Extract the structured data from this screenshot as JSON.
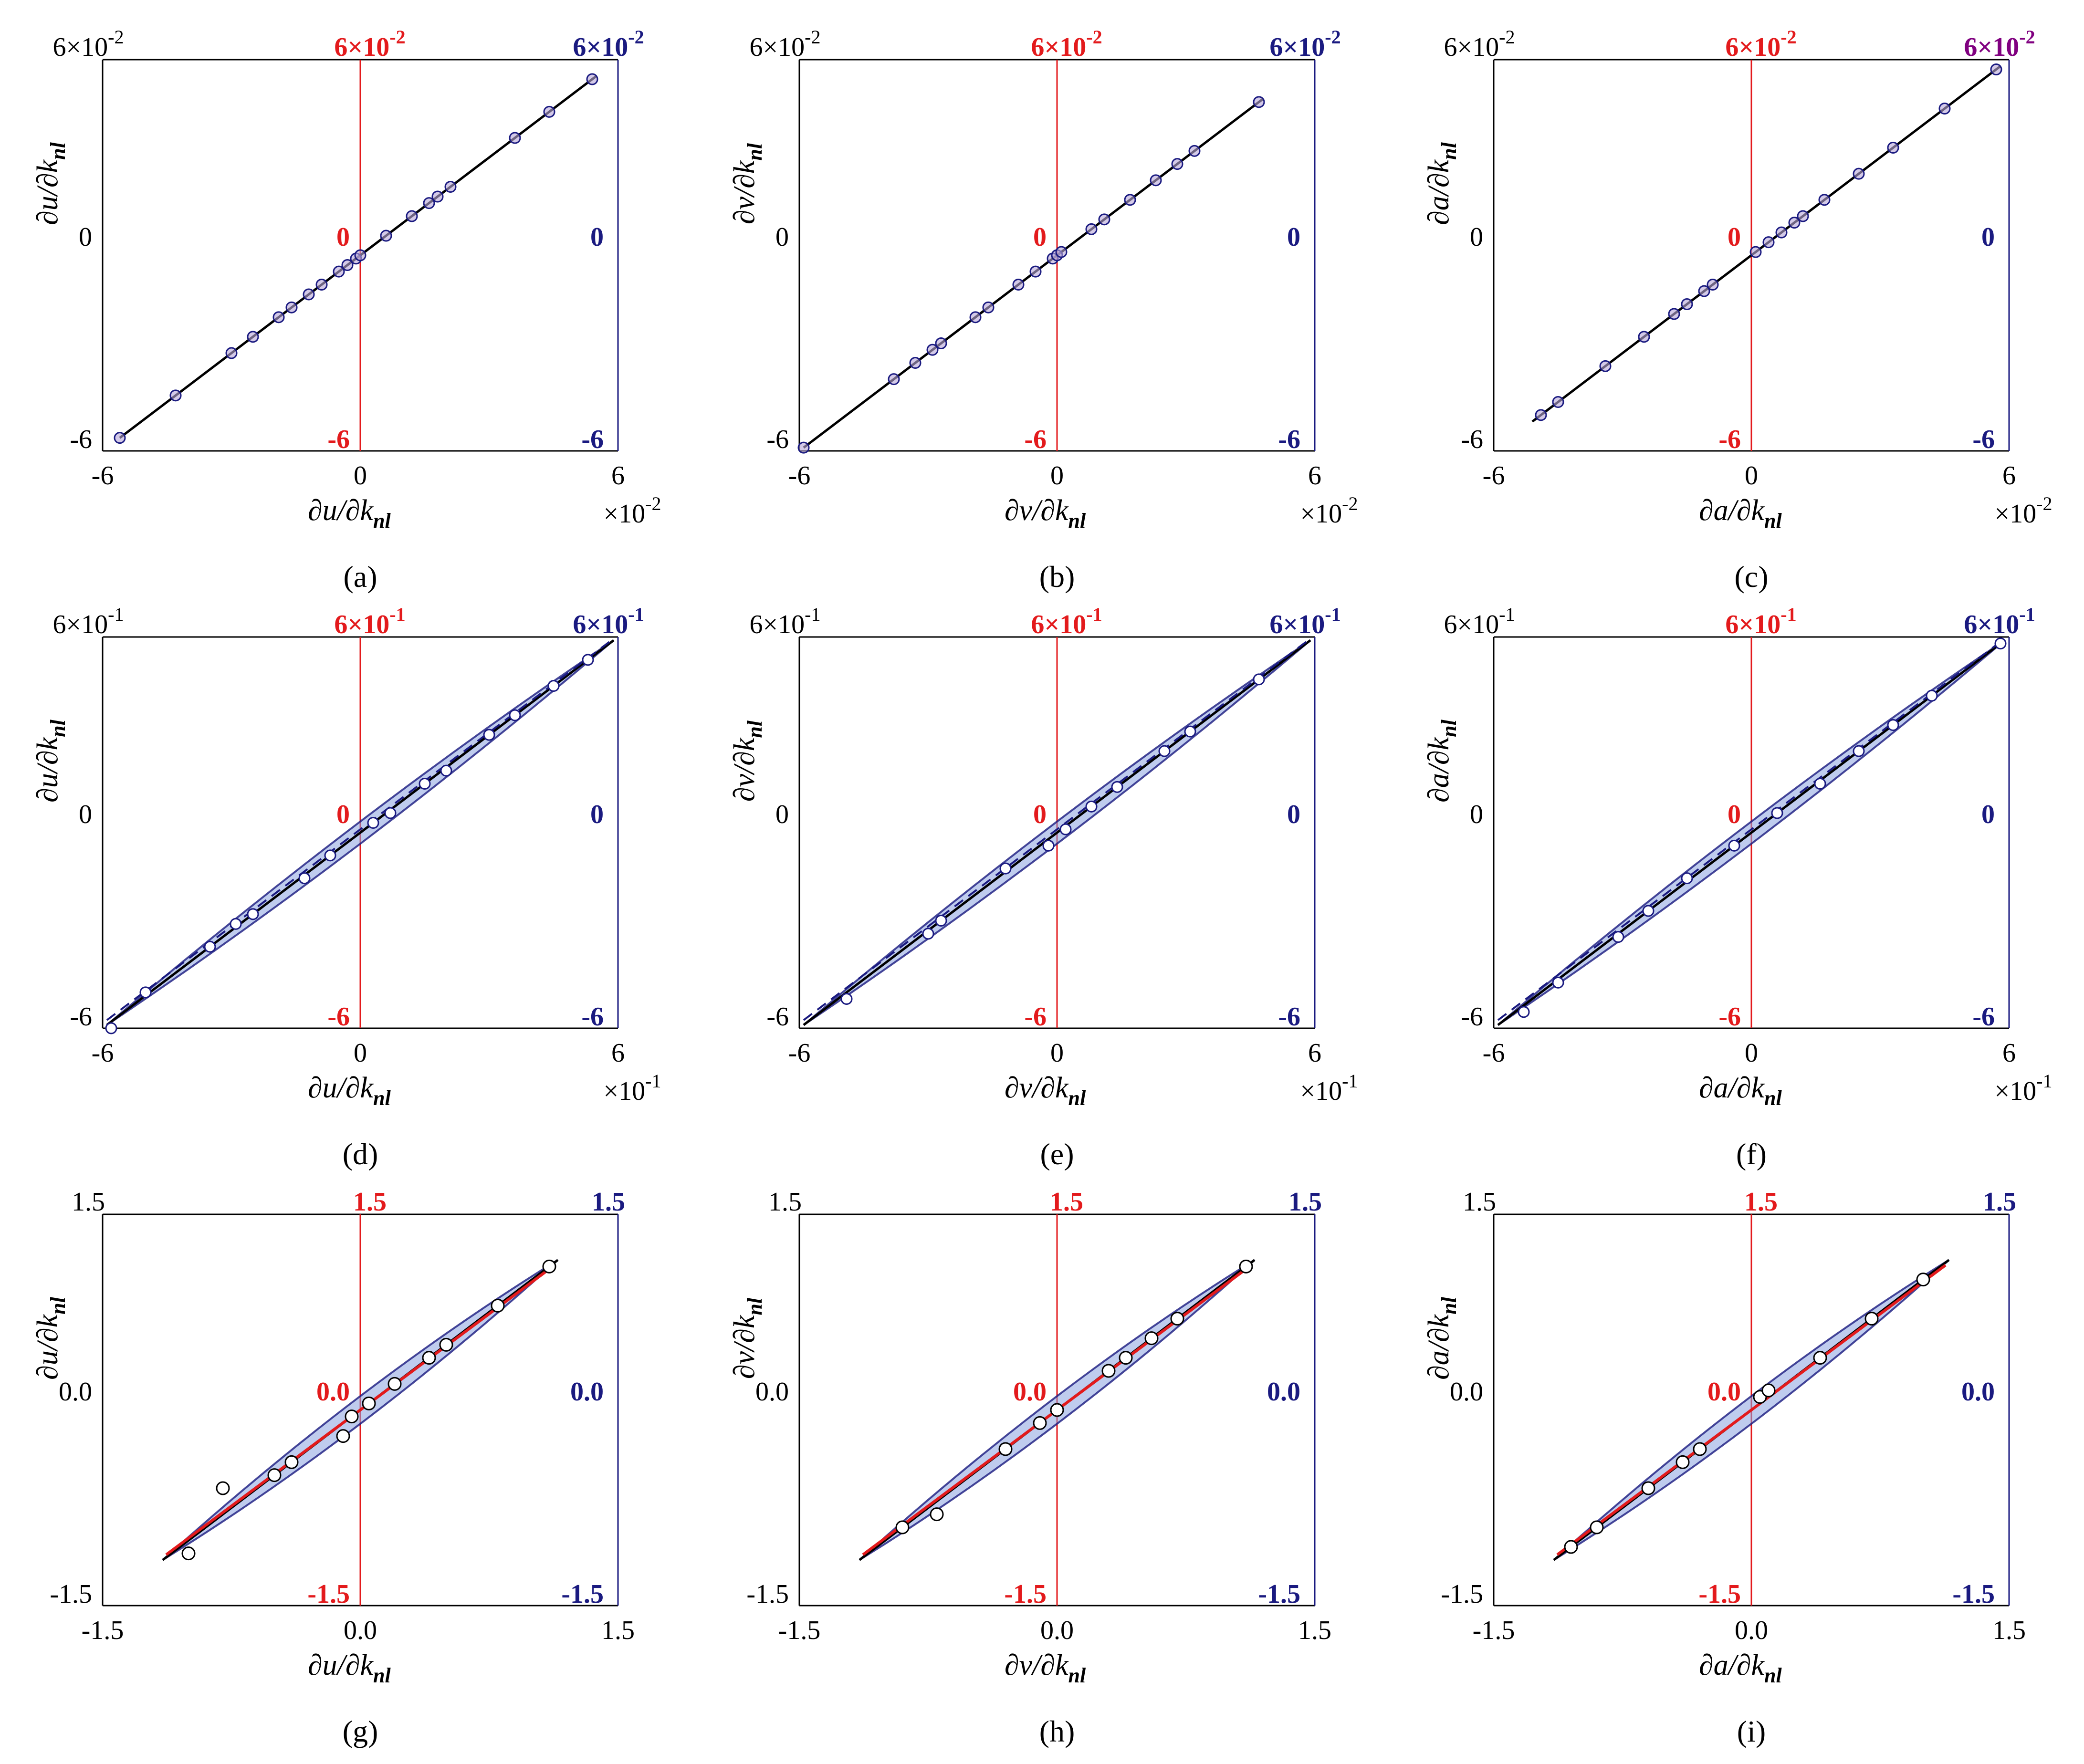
{
  "figure": {
    "colors": {
      "black": "#000000",
      "red": "#e31a1c",
      "navy": "#1a1a80",
      "purple": "#800080",
      "marker_fill": "#b8a6d9",
      "band": "#8aa2e0"
    },
    "panels": [
      {
        "id": "a",
        "caption": "(a)",
        "var": "u",
        "xlabel_prefix": "∂u/∂k",
        "xlabel_sub": "nl",
        "ylabel_prefix": "∂u/∂k",
        "ylabel_sub": "nl",
        "type": "scatter",
        "xlim": [
          -6,
          6
        ],
        "ylim": [
          -6,
          6
        ],
        "unit_exp": "-2",
        "black_ticks": {
          "top": "6×10",
          "top_exp": "-2",
          "mid": "0",
          "bottom": "-6"
        },
        "red_ticks": {
          "top": "6×10",
          "top_exp": "-2",
          "mid": "0",
          "bottom": "-6"
        },
        "blue_ticks": {
          "top": "6×10",
          "top_exp": "-2",
          "mid": "0",
          "bottom": "-6"
        },
        "right_top_color": "navy",
        "x_ticks": [
          "-6",
          "0",
          "6"
        ],
        "x_multiplier": "×10",
        "x_multiplier_exp": "-2",
        "style": "small",
        "points": [
          [
            -5.6,
            -5.6
          ],
          [
            -4.3,
            -4.3
          ],
          [
            -3.0,
            -3.0
          ],
          [
            -2.5,
            -2.5
          ],
          [
            -1.9,
            -1.9
          ],
          [
            -1.6,
            -1.6
          ],
          [
            -1.2,
            -1.2
          ],
          [
            -0.9,
            -0.9
          ],
          [
            -0.5,
            -0.5
          ],
          [
            -0.3,
            -0.3
          ],
          [
            -0.1,
            -0.1
          ],
          [
            0.0,
            0.0
          ],
          [
            0.6,
            0.6
          ],
          [
            1.2,
            1.2
          ],
          [
            1.6,
            1.6
          ],
          [
            1.8,
            1.8
          ],
          [
            2.1,
            2.1
          ],
          [
            3.6,
            3.6
          ],
          [
            4.4,
            4.4
          ],
          [
            5.4,
            5.4
          ]
        ],
        "line_range": [
          -5.6,
          5.5
        ]
      },
      {
        "id": "b",
        "caption": "(b)",
        "var": "v",
        "xlabel_prefix": "∂v/∂k",
        "xlabel_sub": "nl",
        "ylabel_prefix": "∂v/∂k",
        "ylabel_sub": "nl",
        "type": "scatter",
        "xlim": [
          -6,
          6
        ],
        "ylim": [
          -6,
          6
        ],
        "unit_exp": "-2",
        "black_ticks": {
          "top": "6×10",
          "top_exp": "-2",
          "mid": "0",
          "bottom": "-6"
        },
        "red_ticks": {
          "top": "6×10",
          "top_exp": "-2",
          "mid": "0",
          "bottom": "-6"
        },
        "blue_ticks": {
          "top": "6×10",
          "top_exp": "-2",
          "mid": "0",
          "bottom": "-6"
        },
        "right_top_color": "navy",
        "x_ticks": [
          "-6",
          "0",
          "6"
        ],
        "x_multiplier": "×10",
        "x_multiplier_exp": "-2",
        "style": "small",
        "points": [
          [
            -5.9,
            -5.9
          ],
          [
            -3.8,
            -3.8
          ],
          [
            -3.3,
            -3.3
          ],
          [
            -2.9,
            -2.9
          ],
          [
            -2.7,
            -2.7
          ],
          [
            -1.9,
            -1.9
          ],
          [
            -1.6,
            -1.6
          ],
          [
            -0.9,
            -0.9
          ],
          [
            -0.5,
            -0.5
          ],
          [
            -0.1,
            -0.1
          ],
          [
            0.0,
            0.0
          ],
          [
            0.1,
            0.1
          ],
          [
            0.8,
            0.8
          ],
          [
            1.1,
            1.1
          ],
          [
            1.7,
            1.7
          ],
          [
            2.3,
            2.3
          ],
          [
            2.8,
            2.8
          ],
          [
            3.2,
            3.2
          ],
          [
            4.7,
            4.7
          ]
        ],
        "line_range": [
          -5.9,
          4.8
        ]
      },
      {
        "id": "c",
        "caption": "(c)",
        "var": "a",
        "xlabel_prefix": "∂a/∂k",
        "xlabel_sub": "nl",
        "ylabel_prefix": "∂a/∂k",
        "ylabel_sub": "nl",
        "type": "scatter",
        "xlim": [
          -6,
          6
        ],
        "ylim": [
          -6,
          6
        ],
        "unit_exp": "-2",
        "black_ticks": {
          "top": "6×10",
          "top_exp": "-2",
          "mid": "0",
          "bottom": "-6"
        },
        "red_ticks": {
          "top": "6×10",
          "top_exp": "-2",
          "mid": "0",
          "bottom": "-6"
        },
        "blue_ticks": {
          "top": "6×10",
          "top_exp": "-2",
          "mid": "0",
          "bottom": "-6"
        },
        "right_top_color": "purple",
        "x_ticks": [
          "-6",
          "0",
          "6"
        ],
        "x_multiplier": "×10",
        "x_multiplier_exp": "-2",
        "style": "small",
        "points": [
          [
            -4.9,
            -4.9
          ],
          [
            -4.5,
            -4.5
          ],
          [
            -3.4,
            -3.4
          ],
          [
            -2.5,
            -2.5
          ],
          [
            -1.8,
            -1.8
          ],
          [
            -1.5,
            -1.5
          ],
          [
            -1.1,
            -1.1
          ],
          [
            -0.9,
            -0.9
          ],
          [
            0.1,
            0.1
          ],
          [
            0.4,
            0.4
          ],
          [
            0.7,
            0.7
          ],
          [
            1.0,
            1.0
          ],
          [
            1.2,
            1.2
          ],
          [
            1.7,
            1.7
          ],
          [
            2.5,
            2.5
          ],
          [
            3.3,
            3.3
          ],
          [
            4.5,
            4.5
          ],
          [
            5.7,
            5.7
          ]
        ],
        "line_range": [
          -5.1,
          5.8
        ]
      },
      {
        "id": "d",
        "caption": "(d)",
        "var": "u",
        "xlabel_prefix": "∂u/∂k",
        "xlabel_sub": "nl",
        "ylabel_prefix": "∂u/∂k",
        "ylabel_sub": "nl",
        "type": "scatter",
        "xlim": [
          -6,
          6
        ],
        "ylim": [
          -6,
          6
        ],
        "unit_exp": "-1",
        "black_ticks": {
          "top": "6×10",
          "top_exp": "-1",
          "mid": "0",
          "bottom": "-6"
        },
        "red_ticks": {
          "top": "6×10",
          "top_exp": "-1",
          "mid": "0",
          "bottom": "-6"
        },
        "blue_ticks": {
          "top": "6×10",
          "top_exp": "-1",
          "mid": "0",
          "bottom": "-6"
        },
        "right_top_color": "navy",
        "x_ticks": [
          "-6",
          "0",
          "6"
        ],
        "x_multiplier": "×10",
        "x_multiplier_exp": "-1",
        "style": "dense",
        "points": [
          [
            -5.8,
            -6.0
          ],
          [
            -5.0,
            -4.9
          ],
          [
            -3.5,
            -3.5
          ],
          [
            -2.9,
            -2.8
          ],
          [
            -2.5,
            -2.5
          ],
          [
            -1.3,
            -1.4
          ],
          [
            -0.7,
            -0.7
          ],
          [
            0.3,
            0.3
          ],
          [
            0.7,
            0.6
          ],
          [
            1.5,
            1.5
          ],
          [
            2.0,
            1.9
          ],
          [
            3.0,
            3.0
          ],
          [
            3.6,
            3.6
          ],
          [
            4.5,
            4.5
          ],
          [
            5.3,
            5.3
          ]
        ],
        "line_range": [
          -5.9,
          5.9
        ]
      },
      {
        "id": "e",
        "caption": "(e)",
        "var": "v",
        "xlabel_prefix": "∂v/∂k",
        "xlabel_sub": "nl",
        "ylabel_prefix": "∂v/∂k",
        "ylabel_sub": "nl",
        "type": "scatter",
        "xlim": [
          -6,
          6
        ],
        "ylim": [
          -6,
          6
        ],
        "unit_exp": "-1",
        "black_ticks": {
          "top": "6×10",
          "top_exp": "-1",
          "mid": "0",
          "bottom": "-6"
        },
        "red_ticks": {
          "top": "6×10",
          "top_exp": "-1",
          "mid": "0",
          "bottom": "-6"
        },
        "blue_ticks": {
          "top": "6×10",
          "top_exp": "-1",
          "mid": "0",
          "bottom": "-6"
        },
        "right_top_color": "navy",
        "x_ticks": [
          "-6",
          "0",
          "6"
        ],
        "x_multiplier": "×10",
        "x_multiplier_exp": "-1",
        "style": "dense",
        "points": [
          [
            -4.9,
            -5.1
          ],
          [
            -3.0,
            -3.1
          ],
          [
            -2.7,
            -2.7
          ],
          [
            -1.2,
            -1.1
          ],
          [
            -0.2,
            -0.4
          ],
          [
            0.2,
            0.1
          ],
          [
            0.8,
            0.8
          ],
          [
            1.4,
            1.4
          ],
          [
            2.5,
            2.5
          ],
          [
            3.1,
            3.1
          ],
          [
            4.7,
            4.7
          ]
        ],
        "line_range": [
          -5.9,
          5.9
        ]
      },
      {
        "id": "f",
        "caption": "(f)",
        "var": "a",
        "xlabel_prefix": "∂a/∂k",
        "xlabel_sub": "nl",
        "ylabel_prefix": "∂a/∂k",
        "ylabel_sub": "nl",
        "type": "scatter",
        "xlim": [
          -6,
          6
        ],
        "ylim": [
          -6,
          6
        ],
        "unit_exp": "-1",
        "black_ticks": {
          "top": "6×10",
          "top_exp": "-1",
          "mid": "0",
          "bottom": "-6"
        },
        "red_ticks": {
          "top": "6×10",
          "top_exp": "-1",
          "mid": "0",
          "bottom": "-6"
        },
        "blue_ticks": {
          "top": "6×10",
          "top_exp": "-1",
          "mid": "0",
          "bottom": "-6"
        },
        "right_top_color": "navy",
        "x_ticks": [
          "-6",
          "0",
          "6"
        ],
        "x_multiplier": "×10",
        "x_multiplier_exp": "-1",
        "style": "dense",
        "points": [
          [
            -5.3,
            -5.5
          ],
          [
            -4.5,
            -4.6
          ],
          [
            -3.1,
            -3.2
          ],
          [
            -2.4,
            -2.4
          ],
          [
            -1.5,
            -1.4
          ],
          [
            -0.4,
            -0.4
          ],
          [
            0.6,
            0.6
          ],
          [
            1.6,
            1.5
          ],
          [
            2.5,
            2.5
          ],
          [
            3.3,
            3.3
          ],
          [
            4.2,
            4.2
          ],
          [
            5.8,
            5.8
          ]
        ],
        "line_range": [
          -5.9,
          5.9
        ]
      },
      {
        "id": "g",
        "caption": "(g)",
        "var": "u",
        "xlabel_prefix": "∂u/∂k",
        "xlabel_sub": "nl",
        "ylabel_prefix": "∂u/∂k",
        "ylabel_sub": "nl",
        "type": "scatter",
        "xlim": [
          -1.5,
          1.5
        ],
        "ylim": [
          -1.5,
          1.5
        ],
        "unit_exp": "",
        "black_ticks": {
          "top": "1.5",
          "top_exp": "",
          "mid": "0.0",
          "bottom": "-1.5"
        },
        "red_ticks": {
          "top": "1.5",
          "top_exp": "",
          "mid": "0.0",
          "bottom": "-1.5"
        },
        "blue_ticks": {
          "top": "1.5",
          "top_exp": "",
          "mid": "0.0",
          "bottom": "-1.5"
        },
        "right_top_color": "navy",
        "x_ticks": [
          "-1.5",
          "0.0",
          "1.5"
        ],
        "x_multiplier": "",
        "x_multiplier_exp": "",
        "style": "wide",
        "points": [
          [
            -1.0,
            -1.1
          ],
          [
            -0.8,
            -0.6
          ],
          [
            -0.5,
            -0.5
          ],
          [
            -0.4,
            -0.4
          ],
          [
            -0.1,
            -0.2
          ],
          [
            -0.05,
            -0.05
          ],
          [
            0.05,
            0.05
          ],
          [
            0.2,
            0.2
          ],
          [
            0.4,
            0.4
          ],
          [
            0.5,
            0.5
          ],
          [
            0.8,
            0.8
          ],
          [
            1.1,
            1.1
          ]
        ],
        "line_range": [
          -1.15,
          1.15
        ]
      },
      {
        "id": "h",
        "caption": "(h)",
        "var": "v",
        "xlabel_prefix": "∂v/∂k",
        "xlabel_sub": "nl",
        "ylabel_prefix": "∂v/∂k",
        "ylabel_sub": "nl",
        "type": "scatter",
        "xlim": [
          -1.5,
          1.5
        ],
        "ylim": [
          -1.5,
          1.5
        ],
        "unit_exp": "",
        "black_ticks": {
          "top": "1.5",
          "top_exp": "",
          "mid": "0.0",
          "bottom": "-1.5"
        },
        "red_ticks": {
          "top": "1.5",
          "top_exp": "",
          "mid": "0.0",
          "bottom": "-1.5"
        },
        "blue_ticks": {
          "top": "1.5",
          "top_exp": "",
          "mid": "0.0",
          "bottom": "-1.5"
        },
        "right_top_color": "navy",
        "x_ticks": [
          "-1.5",
          "0.0",
          "1.5"
        ],
        "x_multiplier": "",
        "x_multiplier_exp": "",
        "style": "wide",
        "points": [
          [
            -0.9,
            -0.9
          ],
          [
            -0.7,
            -0.8
          ],
          [
            -0.3,
            -0.3
          ],
          [
            -0.1,
            -0.1
          ],
          [
            0.0,
            0.0
          ],
          [
            0.3,
            0.3
          ],
          [
            0.4,
            0.4
          ],
          [
            0.55,
            0.55
          ],
          [
            0.7,
            0.7
          ],
          [
            1.1,
            1.1
          ]
        ],
        "line_range": [
          -1.15,
          1.15
        ]
      },
      {
        "id": "i",
        "caption": "(i)",
        "var": "a",
        "xlabel_prefix": "∂a/∂k",
        "xlabel_sub": "nl",
        "ylabel_prefix": "∂a/∂k",
        "ylabel_sub": "nl",
        "type": "scatter",
        "xlim": [
          -1.5,
          1.5
        ],
        "ylim": [
          -1.5,
          1.5
        ],
        "unit_exp": "",
        "black_ticks": {
          "top": "1.5",
          "top_exp": "",
          "mid": "0.0",
          "bottom": "-1.5"
        },
        "red_ticks": {
          "top": "1.5",
          "top_exp": "",
          "mid": "0.0",
          "bottom": "-1.5"
        },
        "blue_ticks": {
          "top": "1.5",
          "top_exp": "",
          "mid": "0.0",
          "bottom": "-1.5"
        },
        "right_top_color": "navy",
        "x_ticks": [
          "-1.5",
          "0.0",
          "1.5"
        ],
        "x_multiplier": "",
        "x_multiplier_exp": "",
        "style": "wide",
        "points": [
          [
            -1.05,
            -1.05
          ],
          [
            -0.9,
            -0.9
          ],
          [
            -0.6,
            -0.6
          ],
          [
            -0.4,
            -0.4
          ],
          [
            -0.3,
            -0.3
          ],
          [
            0.05,
            0.1
          ],
          [
            0.1,
            0.15
          ],
          [
            0.4,
            0.4
          ],
          [
            0.7,
            0.7
          ],
          [
            1.0,
            1.0
          ]
        ],
        "line_range": [
          -1.15,
          1.15
        ]
      }
    ]
  }
}
